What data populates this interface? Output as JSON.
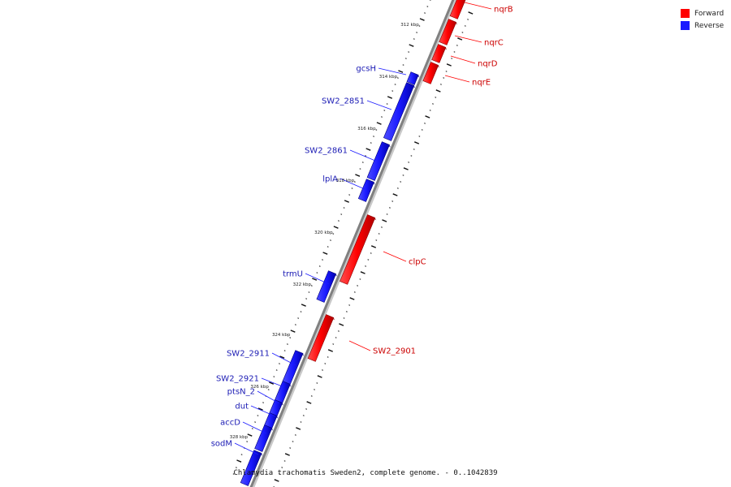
{
  "legend": {
    "forward": {
      "label": "Forward",
      "color": "#ff0000"
    },
    "reverse": {
      "label": "Reverse",
      "color": "#1a1aff"
    }
  },
  "footer": "Chlamydia trachomatis Sweden2, complete genome. - 0..1042839",
  "colors": {
    "forward": "#ff0000",
    "reverse": "#1a1aff",
    "forward_label": "#cc0000",
    "reverse_label": "#1a1ab4",
    "backbone": "#808080"
  },
  "scale_labels": [
    "312 kbp",
    "314 kbp",
    "316 kbp",
    "318 kbp",
    "320 kbp",
    "322 kbp",
    "324 kbp",
    "326 kbp",
    "328 kbp"
  ],
  "genes": {
    "forward": [
      "nqrB",
      "nqrC",
      "nqrD",
      "nqrE",
      "clpC",
      "SW2_2901"
    ],
    "reverse": [
      "gcsH",
      "SW2_2851",
      "SW2_2861",
      "lplA",
      "trmU",
      "SW2_2911",
      "SW2_2921",
      "ptsN_2",
      "dut",
      "accD",
      "sodM"
    ]
  }
}
